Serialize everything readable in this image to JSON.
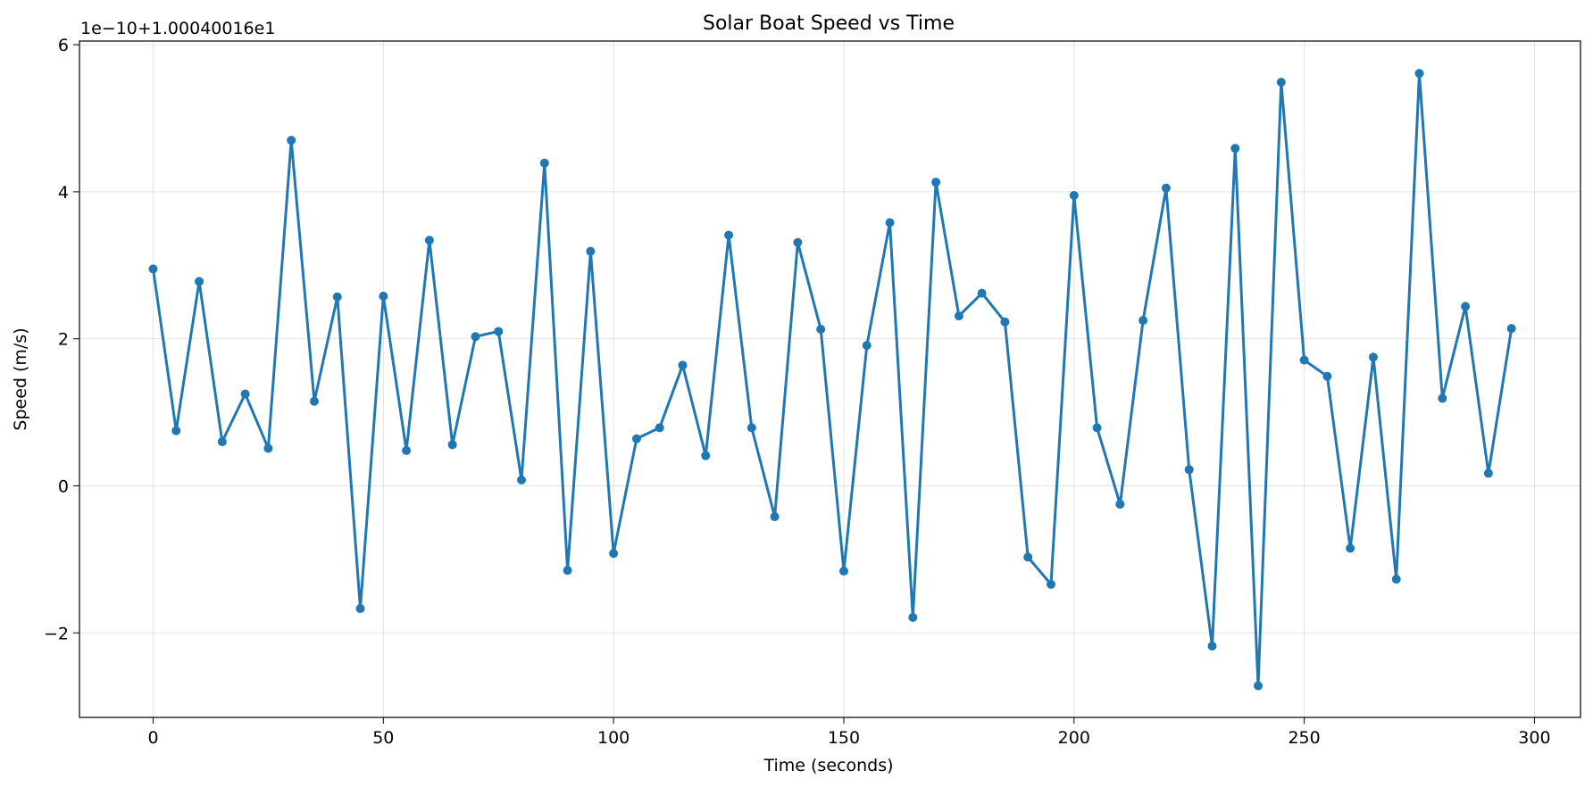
{
  "chart_data": {
    "type": "line",
    "title": "Solar Boat Speed vs Time",
    "xlabel": "Time (seconds)",
    "ylabel": "Speed (m/s)",
    "y_offset_label": "1e−10+1.00040016e1",
    "xlim": [
      -16,
      310
    ],
    "ylim": [
      -3.15,
      6.05
    ],
    "xticks": [
      0,
      50,
      100,
      150,
      200,
      250,
      300
    ],
    "yticks": [
      -2,
      0,
      2,
      4,
      6
    ],
    "xtick_labels": [
      "0",
      "50",
      "100",
      "150",
      "200",
      "250",
      "300"
    ],
    "ytick_labels": [
      "−2",
      "0",
      "2",
      "4",
      "6"
    ],
    "grid": true,
    "line_color": "#1f77b4",
    "series": [
      {
        "x": [
          0,
          5,
          10,
          15,
          20,
          25,
          30,
          35,
          40,
          45,
          50,
          55,
          60,
          65,
          70,
          75,
          80,
          85,
          90,
          95,
          100,
          105,
          110,
          115,
          120,
          125,
          130,
          135,
          140,
          145,
          150,
          155,
          160,
          165,
          170,
          175,
          180,
          185,
          190,
          195,
          200,
          205,
          210,
          215,
          220,
          225,
          230,
          235,
          240,
          245,
          250,
          255,
          260,
          265,
          270,
          275,
          280,
          285,
          290,
          295
        ],
        "y": [
          2.95,
          0.75,
          2.78,
          0.6,
          1.25,
          0.51,
          4.7,
          1.15,
          2.57,
          -1.67,
          2.58,
          0.48,
          3.34,
          0.56,
          2.03,
          2.1,
          0.08,
          4.39,
          -1.15,
          3.19,
          -0.92,
          0.64,
          0.79,
          1.64,
          0.41,
          3.41,
          0.79,
          -0.42,
          3.31,
          2.13,
          -1.16,
          1.91,
          3.58,
          -1.79,
          4.13,
          2.31,
          2.62,
          2.23,
          -0.97,
          -1.34,
          3.95,
          0.79,
          -0.25,
          2.25,
          4.05,
          0.22,
          -2.18,
          4.59,
          -2.72,
          5.49,
          1.71,
          1.49,
          -0.85,
          1.75,
          -1.27,
          5.61,
          1.19,
          2.44,
          0.17,
          2.14
        ]
      }
    ]
  }
}
